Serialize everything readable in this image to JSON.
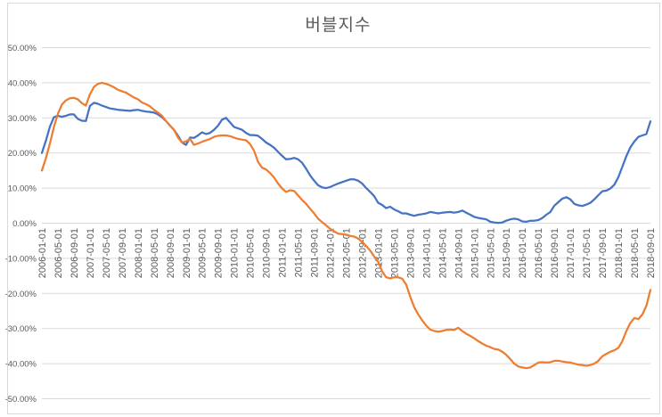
{
  "chart_data": {
    "type": "line",
    "title": "버블지수",
    "legend": "none",
    "grid": true,
    "x_interval": "monthly",
    "x_start": "2006-01-01",
    "x_end": "2018-09-01",
    "x_tick_every_months": 4,
    "x_tick_labels": [
      "2006-01-01",
      "2006-05-01",
      "2006-09-01",
      "2007-01-01",
      "2007-05-01",
      "2007-09-01",
      "2008-01-01",
      "2008-05-01",
      "2008-09-01",
      "2009-01-01",
      "2009-05-01",
      "2009-09-01",
      "2010-01-01",
      "2010-05-01",
      "2010-09-01",
      "2011-01-01",
      "2011-05-01",
      "2011-09-01",
      "2012-01-01",
      "2012-05-01",
      "2012-09-01",
      "2013-01-01",
      "2013-05-01",
      "2013-09-01",
      "2014-01-01",
      "2014-05-01",
      "2014-09-01",
      "2015-01-01",
      "2015-05-01",
      "2015-09-01",
      "2016-01-01",
      "2016-05-01",
      "2016-09-01",
      "2017-01-01",
      "2017-05-01",
      "2017-09-01",
      "2018-01-01",
      "2018-05-01",
      "2018-09-01"
    ],
    "y_axis": {
      "min": -50,
      "max": 50,
      "step": 10,
      "unit": "%",
      "tick_labels": [
        "50.00%",
        "40.00%",
        "30.00%",
        "20.00%",
        "10.00%",
        "0.00%",
        "-10.00%",
        "-20.00%",
        "-30.00%",
        "-40.00%",
        "-50.00%"
      ]
    },
    "series": [
      {
        "name": "blue",
        "color": "#4472C4",
        "values": [
          20.0,
          23.5,
          27.5,
          30.2,
          30.6,
          30.3,
          30.6,
          31.0,
          31.0,
          29.7,
          29.2,
          29.1,
          33.4,
          34.3,
          34.0,
          33.5,
          33.1,
          32.7,
          32.5,
          32.3,
          32.2,
          32.1,
          32.0,
          32.2,
          32.3,
          32.0,
          31.8,
          31.7,
          31.5,
          31.0,
          30.2,
          29.1,
          27.8,
          26.6,
          24.9,
          23.0,
          22.3,
          24.4,
          24.3,
          25.0,
          25.9,
          25.4,
          25.7,
          26.6,
          27.8,
          29.5,
          30.0,
          28.7,
          27.4,
          27.0,
          26.6,
          25.7,
          25.1,
          25.1,
          24.9,
          24.0,
          23.0,
          22.3,
          21.5,
          20.3,
          19.2,
          18.2,
          18.3,
          18.6,
          18.2,
          17.2,
          15.5,
          13.6,
          12.1,
          10.8,
          10.2,
          10.0,
          10.3,
          10.8,
          11.3,
          11.7,
          12.1,
          12.5,
          12.5,
          12.1,
          11.3,
          10.0,
          8.9,
          7.7,
          5.8,
          5.2,
          4.3,
          4.7,
          3.9,
          3.4,
          2.8,
          2.8,
          2.4,
          2.1,
          2.4,
          2.6,
          2.8,
          3.2,
          3.0,
          2.8,
          3.0,
          3.1,
          3.2,
          3.0,
          3.2,
          3.6,
          3.0,
          2.4,
          1.8,
          1.5,
          1.3,
          1.1,
          0.4,
          0.2,
          0.1,
          0.2,
          0.7,
          1.1,
          1.3,
          1.1,
          0.5,
          0.4,
          0.7,
          0.7,
          0.9,
          1.5,
          2.4,
          3.2,
          5.0,
          6.0,
          7.0,
          7.4,
          6.8,
          5.5,
          5.1,
          4.9,
          5.3,
          5.8,
          6.8,
          8.0,
          9.1,
          9.3,
          9.9,
          11.0,
          13.1,
          16.1,
          19.1,
          21.6,
          23.3,
          24.6,
          25.0,
          25.4,
          29.0
        ]
      },
      {
        "name": "orange",
        "color": "#ED7D31",
        "values": [
          15.0,
          18.5,
          22.7,
          27.4,
          31.2,
          33.8,
          35.0,
          35.6,
          35.7,
          35.3,
          34.2,
          33.5,
          36.7,
          38.8,
          39.7,
          40.0,
          39.7,
          39.3,
          38.7,
          38.0,
          37.6,
          37.2,
          36.5,
          35.8,
          35.3,
          34.4,
          33.9,
          33.3,
          32.3,
          31.5,
          30.6,
          29.1,
          27.8,
          26.6,
          24.4,
          23.0,
          23.3,
          24.0,
          22.3,
          22.7,
          23.2,
          23.6,
          24.0,
          24.6,
          24.9,
          25.0,
          25.0,
          24.8,
          24.4,
          24.0,
          23.8,
          23.6,
          22.5,
          20.6,
          17.5,
          15.8,
          15.3,
          14.3,
          13.0,
          11.3,
          9.9,
          8.9,
          9.4,
          9.2,
          7.9,
          6.6,
          5.5,
          4.1,
          2.8,
          1.3,
          0.3,
          -0.6,
          -1.6,
          -2.3,
          -3.0,
          -3.1,
          -3.3,
          -3.6,
          -3.8,
          -4.4,
          -5.3,
          -6.5,
          -7.8,
          -9.5,
          -11.0,
          -13.7,
          -15.4,
          -15.7,
          -15.4,
          -15.4,
          -15.8,
          -17.5,
          -20.9,
          -23.9,
          -26.0,
          -27.7,
          -29.2,
          -30.3,
          -30.7,
          -30.9,
          -30.7,
          -30.4,
          -30.3,
          -30.4,
          -29.8,
          -30.7,
          -31.5,
          -32.1,
          -32.8,
          -33.6,
          -34.3,
          -34.9,
          -35.3,
          -35.8,
          -36.0,
          -36.6,
          -37.5,
          -38.7,
          -40.0,
          -40.8,
          -41.1,
          -41.3,
          -41.1,
          -40.4,
          -39.7,
          -39.6,
          -39.7,
          -39.6,
          -39.2,
          -39.2,
          -39.4,
          -39.6,
          -39.7,
          -40.0,
          -40.3,
          -40.4,
          -40.6,
          -40.4,
          -40.0,
          -39.2,
          -37.9,
          -37.2,
          -36.6,
          -36.2,
          -35.5,
          -33.6,
          -30.7,
          -28.4,
          -27.0,
          -27.3,
          -26.0,
          -23.5,
          -19.0
        ]
      }
    ],
    "colors": {
      "gridline": "#D9D9D9",
      "chart_border": "#D9D9D9",
      "axis_text": "#595959",
      "title_text": "#595959",
      "background": "#FFFFFF"
    }
  }
}
